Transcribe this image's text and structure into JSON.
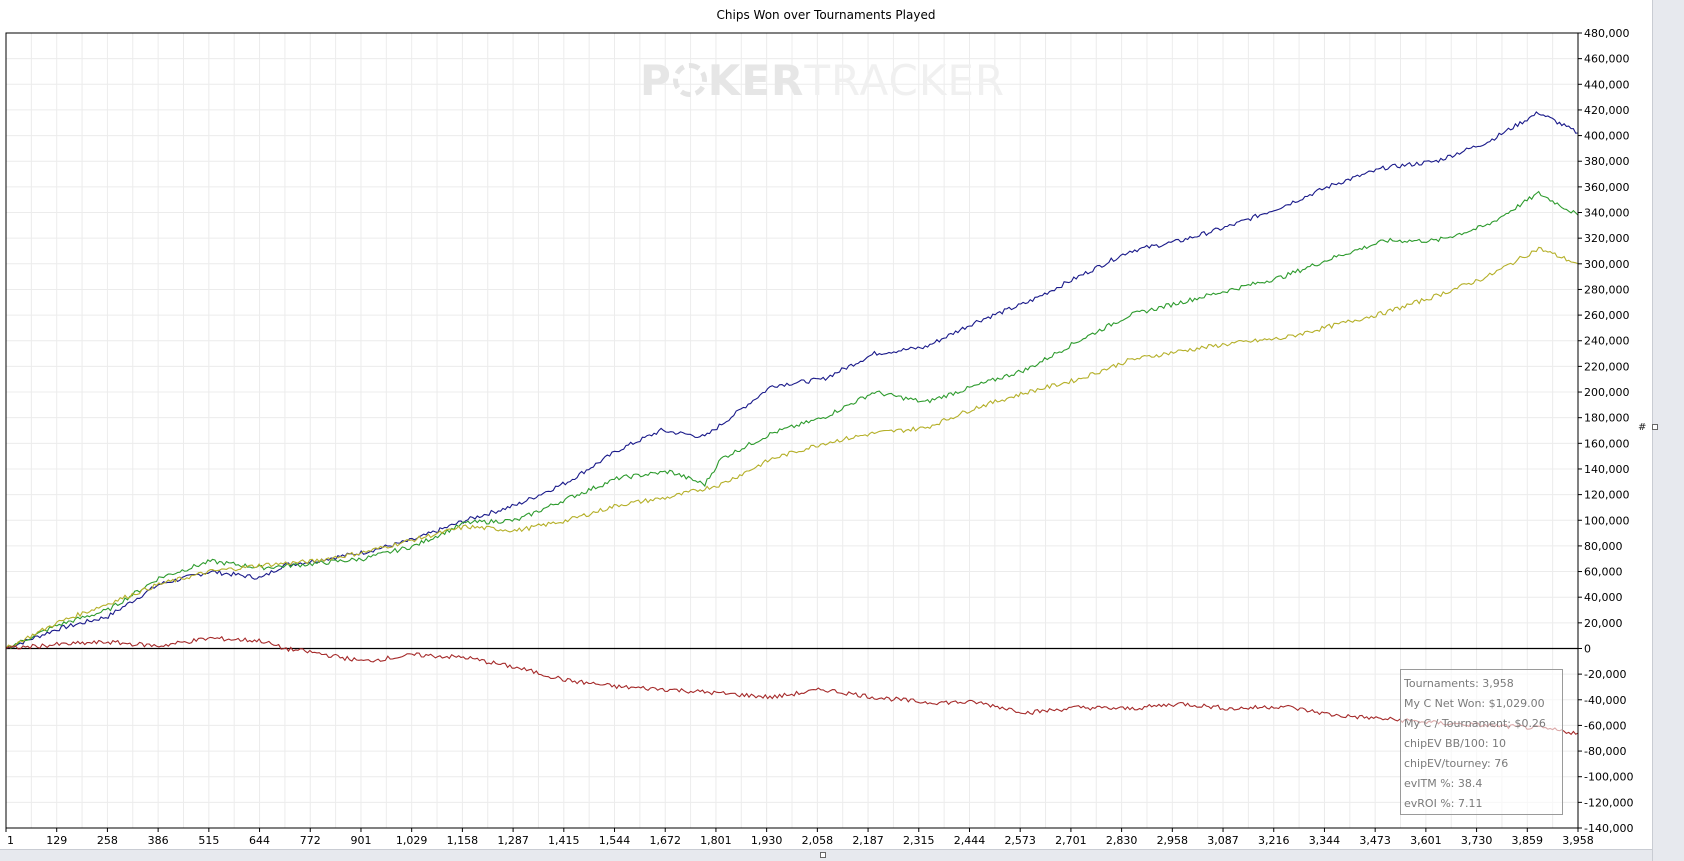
{
  "chart_data": {
    "type": "line",
    "title": "Chips Won over Tournaments Played",
    "xlabel": "",
    "ylabel": "",
    "xlim": [
      1,
      3958
    ],
    "ylim": [
      -140000,
      480000
    ],
    "x_ticks": [
      "1",
      "129",
      "258",
      "386",
      "515",
      "644",
      "772",
      "901",
      "1,029",
      "1,158",
      "1,287",
      "1,415",
      "1,544",
      "1,672",
      "1,801",
      "1,930",
      "2,058",
      "2,187",
      "2,315",
      "2,444",
      "2,573",
      "2,701",
      "2,830",
      "2,958",
      "3,087",
      "3,216",
      "3,344",
      "3,473",
      "3,601",
      "3,730",
      "3,859",
      "3,958"
    ],
    "y_ticks": [
      "480,000",
      "460,000",
      "440,000",
      "420,000",
      "400,000",
      "380,000",
      "360,000",
      "340,000",
      "320,000",
      "300,000",
      "280,000",
      "260,000",
      "240,000",
      "220,000",
      "200,000",
      "180,000",
      "160,000",
      "140,000",
      "120,000",
      "100,000",
      "80,000",
      "60,000",
      "40,000",
      "20,000",
      "0",
      "-20,000",
      "-40,000",
      "-60,000",
      "-80,000",
      "-100,000",
      "-120,000",
      "-140,000"
    ],
    "grid": true,
    "colors": {
      "blue": "#1a1a8a",
      "green": "#2e9b2e",
      "olive": "#b5b02a",
      "red": "#a52a2a"
    },
    "series": [
      {
        "color": "#1a1a8a",
        "x": [
          1,
          129,
          258,
          386,
          515,
          644,
          700,
          772,
          901,
          1029,
          1158,
          1287,
          1415,
          1544,
          1650,
          1760,
          1930,
          2058,
          2187,
          2315,
          2444,
          2573,
          2701,
          2830,
          2958,
          3087,
          3216,
          3344,
          3473,
          3601,
          3730,
          3859,
          3958
        ],
        "y": [
          0,
          15000,
          25000,
          50000,
          60000,
          55000,
          65000,
          68000,
          75000,
          85000,
          100000,
          112000,
          130000,
          155000,
          170000,
          165000,
          205000,
          210000,
          230000,
          235000,
          255000,
          270000,
          290000,
          310000,
          318000,
          330000,
          345000,
          362000,
          375000,
          380000,
          395000,
          418000,
          402000
        ]
      },
      {
        "color": "#2e9b2e",
        "x": [
          1,
          129,
          258,
          386,
          515,
          644,
          772,
          901,
          1029,
          1158,
          1287,
          1415,
          1544,
          1672,
          1760,
          1801,
          1930,
          2058,
          2187,
          2315,
          2444,
          2573,
          2701,
          2830,
          2958,
          3087,
          3216,
          3344,
          3473,
          3601,
          3730,
          3859,
          3958
        ],
        "y": [
          0,
          18000,
          30000,
          55000,
          68000,
          63000,
          66000,
          70000,
          80000,
          98000,
          100000,
          117000,
          133000,
          138000,
          128000,
          148000,
          168000,
          180000,
          200000,
          192000,
          205000,
          218000,
          240000,
          260000,
          270000,
          280000,
          290000,
          305000,
          318000,
          318000,
          330000,
          355000,
          338000
        ]
      },
      {
        "color": "#b5b02a",
        "x": [
          1,
          129,
          258,
          386,
          515,
          644,
          772,
          901,
          1029,
          1158,
          1287,
          1415,
          1544,
          1672,
          1801,
          1930,
          2058,
          2187,
          2315,
          2444,
          2573,
          2701,
          2830,
          2958,
          3087,
          3216,
          3344,
          3473,
          3601,
          3730,
          3859,
          3958
        ],
        "y": [
          0,
          20000,
          35000,
          50000,
          60000,
          65000,
          68000,
          75000,
          85000,
          95000,
          92000,
          100000,
          112000,
          118000,
          128000,
          148000,
          160000,
          168000,
          172000,
          188000,
          200000,
          210000,
          225000,
          232000,
          238000,
          242000,
          252000,
          262000,
          275000,
          290000,
          312000,
          300000
        ]
      },
      {
        "color": "#a52a2a",
        "x": [
          1,
          129,
          258,
          386,
          515,
          644,
          700,
          772,
          901,
          1029,
          1158,
          1287,
          1415,
          1544,
          1672,
          1801,
          1930,
          2058,
          2187,
          2315,
          2444,
          2573,
          2701,
          2830,
          2958,
          3087,
          3216,
          3344,
          3473,
          3601,
          3730,
          3859,
          3958
        ],
        "y": [
          0,
          3000,
          5000,
          2000,
          8000,
          6000,
          0,
          -3000,
          -10000,
          -5000,
          -7000,
          -15000,
          -25000,
          -30000,
          -32000,
          -35000,
          -38000,
          -32000,
          -38000,
          -42000,
          -42000,
          -50000,
          -46000,
          -47000,
          -43000,
          -47000,
          -45000,
          -52000,
          -55000,
          -58000,
          -60000,
          -62000,
          -66000
        ]
      }
    ],
    "zero_line": 0
  },
  "watermark": {
    "dark_part": "P",
    "chip_icon": "poker-chip-icon",
    "mid_part": "KER",
    "light_part": "TRACKER"
  },
  "stats": [
    "Tournaments: 3,958",
    "My C Net Won: $1,029.00",
    "My C / Tournament: $0.26",
    "chipEV BB/100: 10",
    "chipEV/tourney: 76",
    "evITM %: 38.4",
    "evROI %: 7.11"
  ],
  "y_axis_marker": "#"
}
